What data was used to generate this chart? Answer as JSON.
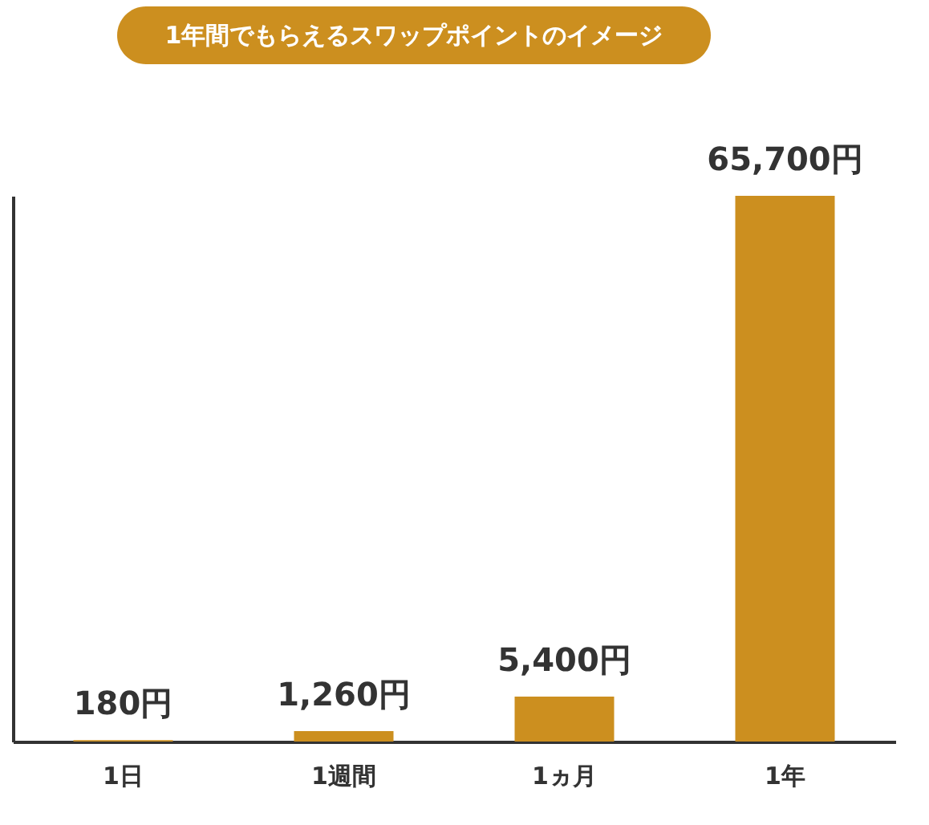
{
  "chart_data": {
    "type": "bar",
    "title": "1年間でもらえるスワップポイントのイメージ",
    "categories": [
      "1日",
      "1週間",
      "1ヵ月",
      "1年"
    ],
    "values": [
      180,
      1260,
      5400,
      65700
    ],
    "color": "#cc8f1f",
    "value_labels": [
      "180円",
      "1,260円",
      "5,400円",
      "65,700円"
    ],
    "tick_labels": "x",
    "grid": false
  }
}
